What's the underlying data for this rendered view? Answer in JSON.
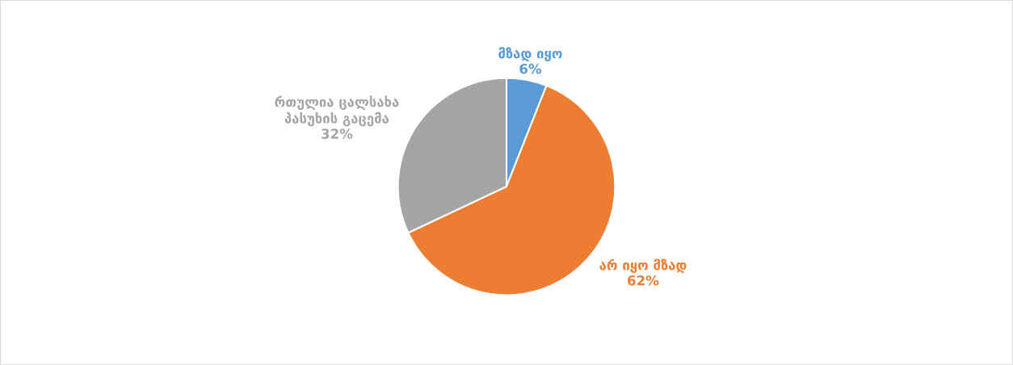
{
  "chart_data": {
    "type": "pie",
    "categories": [
      "მზად იყო",
      "არ იყო მზად",
      "რთულია ცალსახა\nპასუხის გაცემა"
    ],
    "values": [
      6,
      62,
      32
    ],
    "colors": [
      "#5b9bd5",
      "#ed7d31",
      "#a5a5a5"
    ],
    "value_labels": [
      "6%",
      "62%",
      "32%"
    ],
    "legend": false
  }
}
